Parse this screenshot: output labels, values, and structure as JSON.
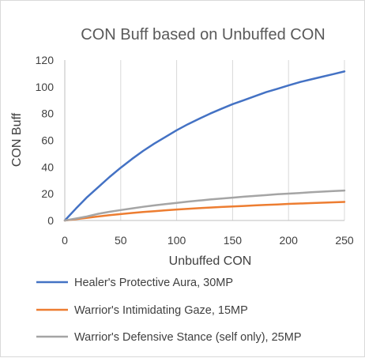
{
  "chart_data": {
    "type": "line",
    "title": "CON Buff based on Unbuffed CON",
    "xlabel": "Unbuffed CON",
    "ylabel": "CON Buff",
    "xlim": [
      0,
      250
    ],
    "ylim": [
      0,
      120
    ],
    "xticks": [
      "0",
      "50",
      "100",
      "150",
      "200",
      "250"
    ],
    "yticks": [
      "0",
      "20",
      "40",
      "60",
      "80",
      "100",
      "120"
    ],
    "grid": "vertical",
    "legend_position": "bottom",
    "series": [
      {
        "name": "Healer's Protective Aura, 30MP",
        "color": "#4472C4",
        "x": [
          0,
          10,
          20,
          30,
          40,
          50,
          60,
          70,
          80,
          90,
          100,
          110,
          120,
          130,
          140,
          150,
          160,
          170,
          180,
          190,
          200,
          210,
          220,
          230,
          240,
          250
        ],
        "y": [
          0,
          9,
          17.5,
          25,
          32.5,
          39.5,
          46,
          52,
          57.5,
          62.5,
          67.5,
          72,
          76,
          80,
          83.5,
          87,
          90,
          93,
          96,
          98.5,
          101,
          103.5,
          105.5,
          107.5,
          109.5,
          111.5
        ]
      },
      {
        "name": "Warrior's Intimidating Gaze, 15MP",
        "color": "#ED7D31",
        "x": [
          0,
          10,
          20,
          30,
          40,
          50,
          60,
          70,
          80,
          90,
          100,
          110,
          120,
          130,
          140,
          150,
          160,
          170,
          180,
          190,
          200,
          210,
          220,
          230,
          240,
          250
        ],
        "y": [
          0,
          1,
          2,
          3,
          4,
          4.8,
          5.6,
          6.3,
          7,
          7.6,
          8.2,
          8.7,
          9.2,
          9.7,
          10.1,
          10.5,
          10.9,
          11.3,
          11.7,
          12.0,
          12.4,
          12.7,
          13.0,
          13.3,
          13.6,
          13.9
        ]
      },
      {
        "name": "Warrior's Defensive Stance (self only), 25MP",
        "color": "#A5A5A5",
        "x": [
          0,
          10,
          20,
          30,
          40,
          50,
          60,
          70,
          80,
          90,
          100,
          110,
          120,
          130,
          140,
          150,
          160,
          170,
          180,
          190,
          200,
          210,
          220,
          230,
          240,
          250
        ],
        "y": [
          0,
          1.5,
          3,
          5,
          6.5,
          7.8,
          9,
          10.2,
          11.3,
          12.3,
          13.2,
          14.1,
          14.9,
          15.7,
          16.4,
          17.1,
          17.8,
          18.4,
          19.0,
          19.6,
          20.1,
          20.6,
          21.1,
          21.6,
          22.0,
          22.4
        ]
      }
    ]
  }
}
